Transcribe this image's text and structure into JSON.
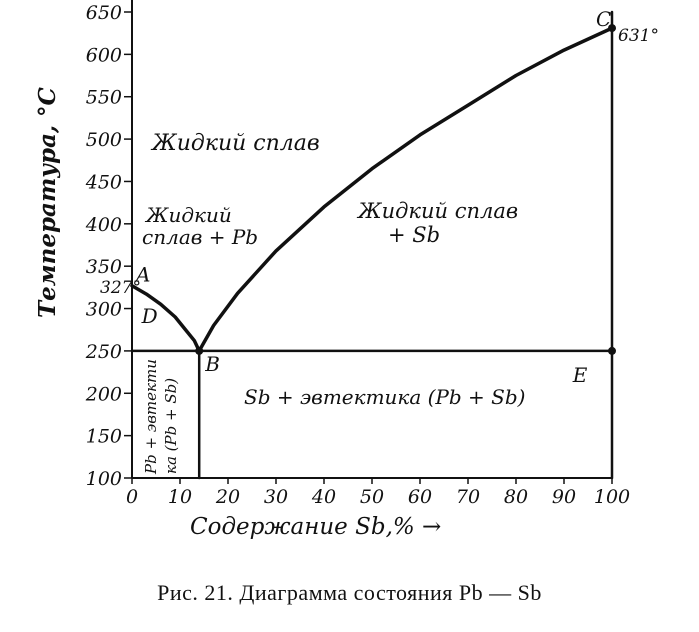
{
  "caption": "Рис. 21. Диаграмма состояния Pb — Sb",
  "chart_data": {
    "type": "line",
    "title": "",
    "xlabel": "Содержание Sb,% →",
    "ylabel": "Температура, °C",
    "xlim": [
      0,
      100
    ],
    "ylim": [
      100,
      650
    ],
    "x_ticks": [
      0,
      10,
      20,
      30,
      40,
      50,
      60,
      70,
      80,
      90,
      100
    ],
    "x_tick_labels": [
      "0",
      "10",
      "20",
      "30",
      "40",
      "50",
      "60",
      "70",
      "80",
      "90",
      "100"
    ],
    "y_ticks": [
      100,
      150,
      200,
      250,
      300,
      350,
      400,
      450,
      500,
      550,
      600,
      650
    ],
    "y_tick_labels": [
      "100",
      "150",
      "200",
      "250",
      "300",
      "350",
      "400",
      "450",
      "500",
      "550",
      "600",
      "650"
    ],
    "grid": false,
    "series": [
      {
        "x": [
          0,
          3,
          6,
          9,
          11,
          13,
          14
        ],
        "y": [
          327,
          317,
          305,
          290,
          276,
          262,
          250
        ]
      },
      {
        "x": [
          14,
          17,
          22,
          30,
          40,
          50,
          60,
          70,
          80,
          90,
          100
        ],
        "y": [
          250,
          280,
          318,
          368,
          420,
          465,
          505,
          540,
          575,
          605,
          631
        ]
      },
      {
        "x": [
          0,
          100
        ],
        "y": [
          250,
          250
        ]
      },
      {
        "x": [
          14,
          14
        ],
        "y": [
          100,
          250
        ]
      },
      {
        "x": [
          100,
          100
        ],
        "y": [
          100,
          650
        ]
      }
    ],
    "points": [
      {
        "name": "A",
        "x": 0,
        "y": 327
      },
      {
        "name": "B",
        "x": 14,
        "y": 250
      },
      {
        "name": "C",
        "x": 100,
        "y": 631
      },
      {
        "name": "D",
        "x": 2,
        "y": 283
      },
      {
        "name": "E",
        "x": 96,
        "y": 237
      }
    ],
    "annotations": {
      "t327": "327°",
      "t631": "631°",
      "liquid": "Жидкий сплав",
      "liq_pb_1": "Жидкий",
      "liq_pb_2": "сплав + Pb",
      "liq_sb_1": "Жидкий сплав",
      "liq_sb_2": "+ Sb",
      "sb_eut": "Sb + эвтектика (Pb + Sb)",
      "pb_eut_1": "Pb + эвтекти",
      "pb_eut_2": "ка (Pb + Sb)"
    }
  }
}
